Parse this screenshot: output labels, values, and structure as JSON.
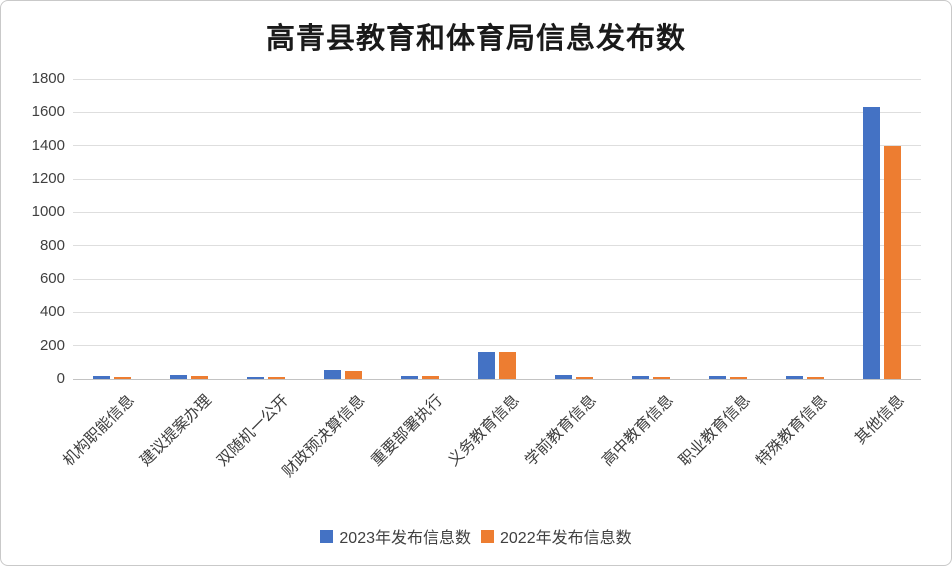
{
  "chart_data": {
    "type": "bar",
    "title": "高青县教育和体育局信息发布数",
    "categories": [
      "机构职能信息",
      "建议提案办理",
      "双随机一公开",
      "财政预决算信息",
      "重要部署执行",
      "义务教育信息",
      "学前教育信息",
      "高中教育信息",
      "职业教育信息",
      "特殊教育信息",
      "其他信息"
    ],
    "series": [
      {
        "year": "2023",
        "name": "2023年发布信息数",
        "color": "#4472C4",
        "values": [
          20,
          22,
          13,
          52,
          20,
          160,
          22,
          15,
          17,
          16,
          1630
        ]
      },
      {
        "year": "2022",
        "name": "2022年发布信息数",
        "color": "#ED7D31",
        "values": [
          12,
          20,
          10,
          50,
          16,
          162,
          13,
          12,
          14,
          13,
          1400
        ]
      }
    ],
    "ylim": [
      0,
      1800
    ],
    "ytick_step": 200,
    "ytick_labels": [
      "0",
      "200",
      "400",
      "600",
      "800",
      "1000",
      "1200",
      "1400",
      "1600",
      "1800"
    ],
    "grid": true,
    "legend_position": "bottom",
    "xlabel": "",
    "ylabel": ""
  },
  "colors": {
    "gridline": "#dedede",
    "axis_line": "#c3c3c3",
    "text": "#404040",
    "frame_border": "#c9c9c9",
    "background": "#ffffff"
  }
}
